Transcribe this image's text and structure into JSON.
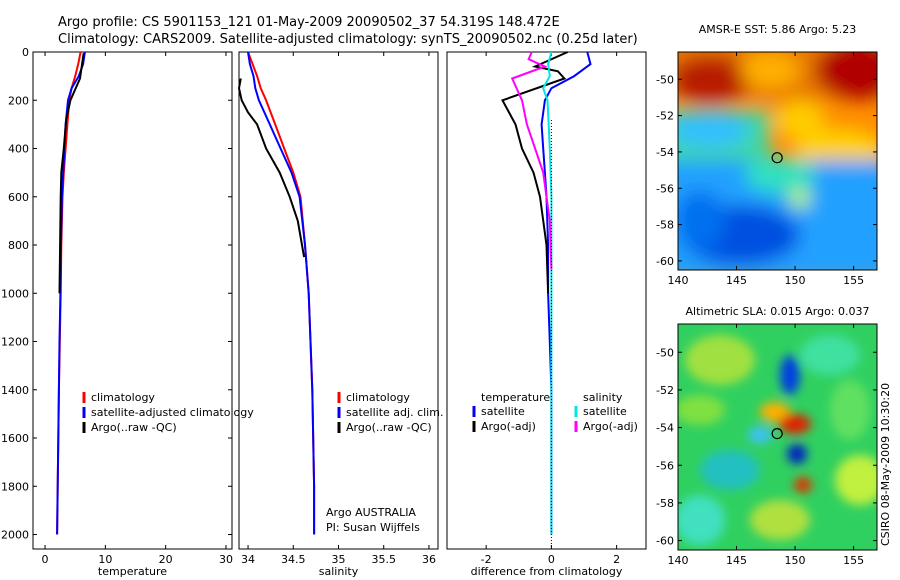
{
  "header": {
    "line1": "Argo profile: CS 5901153_121 01-May-2009 20090502_37 54.319S 148.472E",
    "line2": "Climatology: CARS2009. Satellite-adjusted climatology: synTS_20090502.nc (0.25d later)"
  },
  "side_stamp": "CSIRO 08-May-2009 10:30:20",
  "colors": {
    "climatology": "#ff0000",
    "satellite": "#0000ff",
    "argo": "#000000",
    "satellite_salinity": "#00e5e5",
    "argo_salinity": "#ff00ff"
  },
  "chart_data": [
    {
      "type": "line",
      "xlabel": "temperature",
      "ylabel": "",
      "xlim": [
        -2,
        31
      ],
      "ylim": [
        2060,
        0
      ],
      "xticks": [
        0,
        10,
        20,
        30
      ],
      "yticks": [
        0,
        200,
        400,
        600,
        800,
        1000,
        1200,
        1400,
        1600,
        1800,
        2000
      ],
      "legend": [
        "climatology",
        "satellite-adjusted climatology",
        "Argo(..raw -QC)"
      ],
      "series": [
        {
          "name": "climatology",
          "color": "#ff0000",
          "x": [
            5.9,
            5.5,
            5.0,
            4.4,
            4.0,
            3.7,
            3.4,
            3.1,
            2.9,
            2.7,
            2.6,
            2.45,
            2.3,
            2.2,
            2.1,
            2.0
          ],
          "y": [
            0,
            50,
            100,
            150,
            200,
            300,
            400,
            500,
            600,
            800,
            1000,
            1200,
            1400,
            1600,
            1800,
            2000
          ]
        },
        {
          "name": "satellite-adjusted climatology",
          "color": "#0000ff",
          "x": [
            6.6,
            6.3,
            5.6,
            4.4,
            3.8,
            3.4,
            3.2,
            3.0,
            2.8,
            2.65,
            2.55,
            2.4,
            2.3,
            2.2,
            2.1,
            2.0
          ],
          "y": [
            0,
            50,
            100,
            150,
            200,
            300,
            400,
            500,
            600,
            800,
            1000,
            1200,
            1400,
            1600,
            1800,
            2000
          ]
        },
        {
          "name": "Argo(..raw -QC)",
          "color": "#000000",
          "x": [
            6.4,
            6.2,
            5.8,
            4.2,
            3.5,
            3.1,
            2.7,
            2.6,
            2.5,
            2.4
          ],
          "y": [
            5,
            40,
            110,
            200,
            280,
            400,
            500,
            600,
            800,
            1000
          ]
        }
      ]
    },
    {
      "type": "line",
      "xlabel": "salinity",
      "ylabel": "",
      "xlim": [
        33.9,
        36.1
      ],
      "ylim": [
        2060,
        0
      ],
      "xticks": [
        34,
        34.5,
        35,
        35.5,
        36
      ],
      "yticks": [],
      "legend": [
        "climatology",
        "satellite adj. clim.",
        "Argo(..raw -QC)"
      ],
      "annotation": [
        "Argo AUSTRALIA",
        "PI: Susan Wijffels"
      ],
      "series": [
        {
          "name": "climatology",
          "color": "#ff0000",
          "x": [
            34.0,
            34.05,
            34.1,
            34.14,
            34.2,
            34.3,
            34.4,
            34.5,
            34.58,
            34.63,
            34.67,
            34.69,
            34.71,
            34.72,
            34.73,
            34.73
          ],
          "y": [
            0,
            50,
            100,
            150,
            200,
            300,
            400,
            500,
            600,
            800,
            1000,
            1200,
            1400,
            1600,
            1800,
            2000
          ]
        },
        {
          "name": "satellite adj. clim.",
          "color": "#0000ff",
          "x": [
            34.0,
            34.02,
            34.06,
            34.08,
            34.12,
            34.24,
            34.36,
            34.48,
            34.57,
            34.63,
            34.67,
            34.69,
            34.71,
            34.72,
            34.73,
            34.73
          ],
          "y": [
            0,
            50,
            100,
            150,
            200,
            300,
            400,
            500,
            600,
            800,
            1000,
            1200,
            1400,
            1600,
            1800,
            2000
          ]
        },
        {
          "name": "Argo(..raw -QC)",
          "color": "#000000",
          "x": [
            33.92,
            33.9,
            33.93,
            34.0,
            34.1,
            34.2,
            34.35,
            34.46,
            34.55,
            34.62
          ],
          "y": [
            110,
            150,
            200,
            250,
            300,
            400,
            500,
            600,
            700,
            850
          ]
        }
      ]
    },
    {
      "type": "line",
      "xlabel": "difference from climatology",
      "ylabel": "",
      "xlim": [
        -3.2,
        2.9
      ],
      "ylim": [
        2060,
        0
      ],
      "xticks": [
        -2,
        0,
        2
      ],
      "yticks": [],
      "legend": [
        "temperature",
        "satellite",
        "Argo(-adj)",
        "salinity",
        "satellite",
        "Argo(-adj)"
      ],
      "series": [
        {
          "name": "temperature satellite",
          "color": "#0000ff",
          "x": [
            1.1,
            1.2,
            0.7,
            0.0,
            -0.2,
            -0.3,
            -0.25,
            -0.2,
            -0.15,
            -0.1,
            -0.1,
            -0.05,
            0.0,
            0.0,
            0.0,
            0.0
          ],
          "y": [
            0,
            50,
            100,
            150,
            200,
            300,
            400,
            500,
            600,
            800,
            1000,
            1200,
            1400,
            1600,
            1800,
            2000
          ]
        },
        {
          "name": "temperature Argo(-adj)",
          "color": "#000000",
          "x": [
            0.5,
            -0.5,
            0.2,
            0.4,
            -1.5,
            -1.1,
            -0.9,
            -0.55,
            -0.35,
            -0.15,
            -0.1
          ],
          "y": [
            0,
            60,
            80,
            110,
            200,
            300,
            400,
            500,
            600,
            800,
            1000
          ]
        },
        {
          "name": "salinity satellite",
          "color": "#00e5e5",
          "x": [
            0.0,
            -0.1,
            -0.05,
            -0.25,
            -0.12,
            -0.05,
            0.0,
            0.0,
            0.0,
            0.0
          ],
          "y": [
            0,
            50,
            100,
            150,
            200,
            400,
            600,
            1000,
            1600,
            2000
          ]
        },
        {
          "name": "salinity Argo(-adj)",
          "color": "#ff00ff",
          "x": [
            -0.6,
            -0.7,
            -0.2,
            -1.2,
            -0.9,
            -0.75,
            -0.5,
            -0.25,
            -0.05,
            0.0
          ],
          "y": [
            0,
            30,
            60,
            110,
            200,
            300,
            400,
            500,
            700,
            900
          ]
        }
      ]
    },
    {
      "type": "heatmap",
      "title": "AMSR-E SST: 5.86 Argo: 5.23",
      "xlim": [
        140,
        157
      ],
      "ylim": [
        -60.5,
        -48.5
      ],
      "xticks": [
        140,
        145,
        150,
        155
      ],
      "yticks": [
        -50,
        -52,
        -54,
        -56,
        -58,
        -60
      ],
      "marker": {
        "lon": 148.472,
        "lat": -54.319
      }
    },
    {
      "type": "heatmap",
      "title": "Altimetric SLA: 0.015 Argo: 0.037",
      "xlim": [
        140,
        157
      ],
      "ylim": [
        -60.5,
        -48.5
      ],
      "xticks": [
        140,
        145,
        150,
        155
      ],
      "yticks": [
        -50,
        -52,
        -54,
        -56,
        -58,
        -60
      ],
      "marker": {
        "lon": 148.472,
        "lat": -54.319
      }
    }
  ]
}
